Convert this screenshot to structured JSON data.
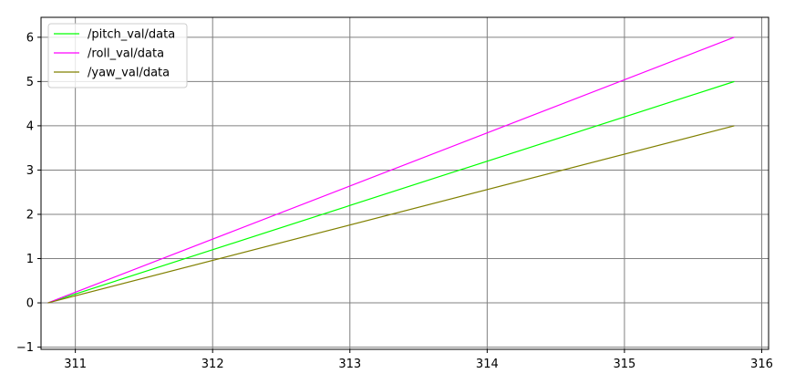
{
  "chart_data": {
    "type": "line",
    "title": "",
    "xlabel": "",
    "ylabel": "",
    "xlim": [
      310.75,
      316.05
    ],
    "ylim": [
      -1.05,
      6.45
    ],
    "xticks": [
      311,
      312,
      313,
      314,
      315,
      316
    ],
    "yticks": [
      -1,
      0,
      1,
      2,
      3,
      4,
      5,
      6
    ],
    "xtick_labels": [
      "311",
      "312",
      "313",
      "314",
      "315",
      "316"
    ],
    "ytick_labels": [
      "−1",
      "0",
      "1",
      "2",
      "3",
      "4",
      "5",
      "6"
    ],
    "grid": true,
    "legend_position": "top-left",
    "series": [
      {
        "name": "/pitch_val/data",
        "color": "#00ff00",
        "x": [
          310.8,
          315.8
        ],
        "y": [
          0,
          5
        ]
      },
      {
        "name": "/roll_val/data",
        "color": "#ff00ff",
        "x": [
          310.8,
          315.8
        ],
        "y": [
          0,
          6
        ]
      },
      {
        "name": "/yaw_val/data",
        "color": "#808000",
        "x": [
          310.8,
          315.8
        ],
        "y": [
          0,
          4
        ]
      }
    ],
    "grid_color": "#808080",
    "axes_color": "#000000"
  }
}
